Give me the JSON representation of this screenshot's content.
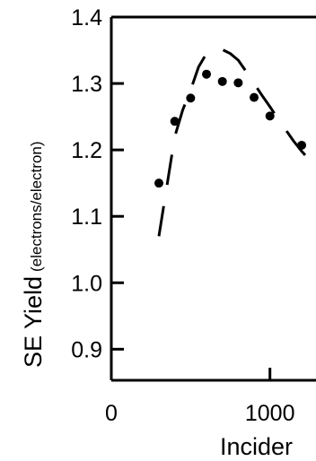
{
  "chart_data": {
    "type": "scatter",
    "ylabel_main": "SE Yield",
    "ylabel_unit": "(electrons/electron)",
    "xlabel": "Incider",
    "xlim": [
      0,
      1280
    ],
    "ylim": [
      0.85,
      1.4
    ],
    "x_ticks": [
      0,
      1000
    ],
    "x_tick_labels": [
      "0",
      "1000"
    ],
    "y_ticks": [
      0.9,
      1.0,
      1.1,
      1.2,
      1.3,
      1.4
    ],
    "y_tick_labels": [
      "0.9",
      "1.0",
      "1.1",
      "1.2",
      "1.3",
      "1.4"
    ],
    "series": [
      {
        "style": "markers",
        "x": [
          300,
          400,
          500,
          600,
          700,
          800,
          900,
          1000,
          1200
        ],
        "y": [
          1.15,
          1.243,
          1.278,
          1.314,
          1.303,
          1.301,
          1.279,
          1.251,
          1.207
        ]
      },
      {
        "style": "dashed",
        "x": [
          300,
          360,
          400,
          450,
          500,
          550,
          600,
          650,
          700,
          750,
          800,
          850,
          900,
          950,
          1000,
          1050,
          1100,
          1150,
          1200,
          1250,
          1280
        ],
        "y": [
          1.07,
          1.16,
          1.22,
          1.26,
          1.29,
          1.325,
          1.345,
          1.352,
          1.351,
          1.345,
          1.335,
          1.318,
          1.3,
          1.282,
          1.265,
          1.247,
          1.23,
          1.213,
          1.198,
          1.185,
          1.178
        ]
      }
    ]
  }
}
